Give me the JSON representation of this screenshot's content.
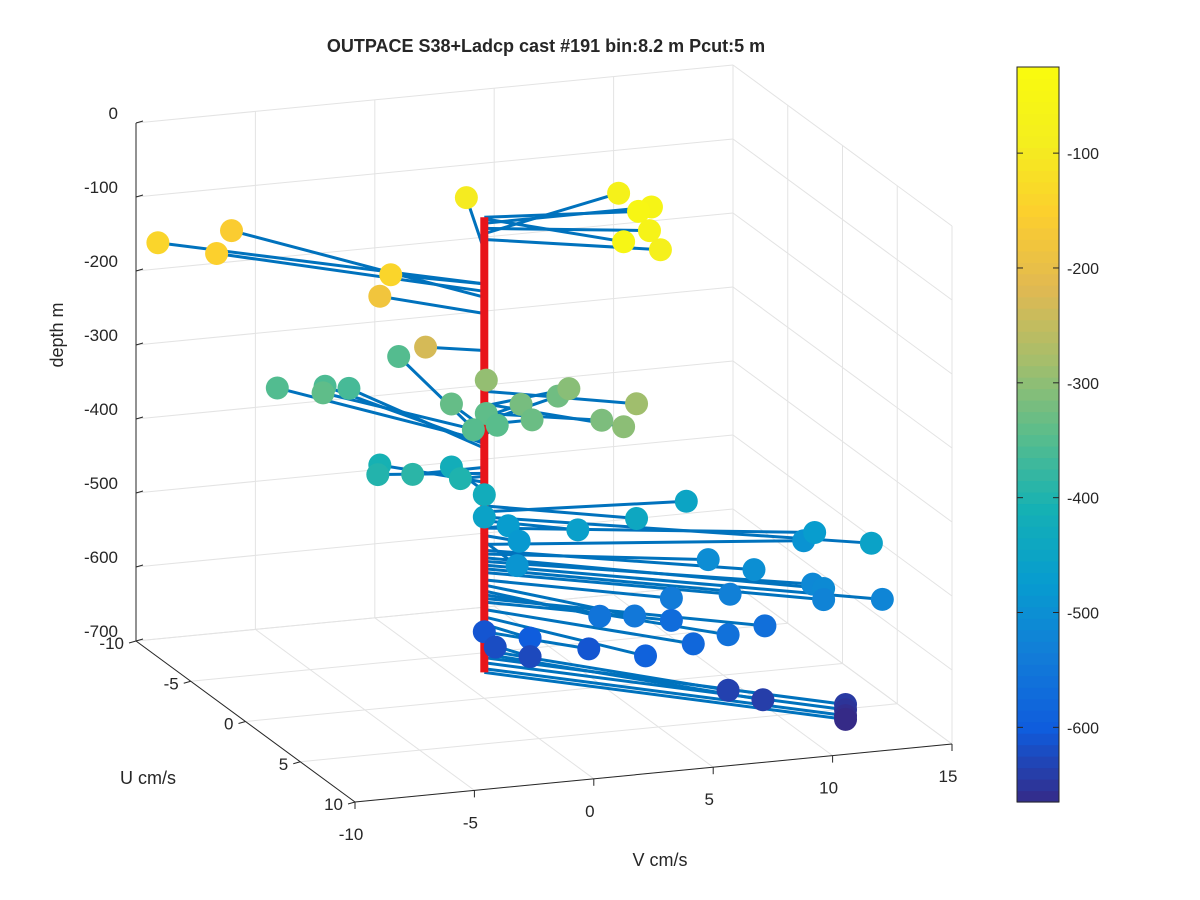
{
  "chart_data": {
    "type": "scatter3d",
    "title": "OUTPACE S38+Ladcp cast #191 bin:8.2 m  Pcut:5 m",
    "xlabel": "U cm/s",
    "ylabel": "V cm/s",
    "zlabel": "depth m",
    "xlim": [
      -10,
      10
    ],
    "ylim": [
      -10,
      15
    ],
    "zlim": [
      -700,
      0
    ],
    "x_ticks": [
      "-10",
      "-5",
      "0",
      "5",
      "10"
    ],
    "y_ticks": [
      "-10",
      "-5",
      "0",
      "5",
      "10",
      "15"
    ],
    "z_ticks": [
      "0",
      "-100",
      "-200",
      "-300",
      "-400",
      "-500",
      "-600",
      "-700"
    ],
    "grid": true,
    "colormap": "parula",
    "colorbar": {
      "range": [
        -665,
        -25
      ],
      "ticks": [
        "-100",
        "-200",
        "-300",
        "-400",
        "-500",
        "-600"
      ],
      "tick_values": [
        -100,
        -200,
        -300,
        -400,
        -500,
        -600
      ]
    },
    "stem_color": "#0072BD",
    "axis_line_color": "#E8141A",
    "points": [
      {
        "u": 1,
        "v": 6,
        "z": -50
      },
      {
        "u": 4,
        "v": 4,
        "z": -52
      },
      {
        "u": 0,
        "v": 7,
        "z": -58
      },
      {
        "u": 2,
        "v": 6,
        "z": -65
      },
      {
        "u": -3,
        "v": 7,
        "z": -72
      },
      {
        "u": 3,
        "v": 6,
        "z": -80
      },
      {
        "u": -6,
        "v": 2,
        "z": -95
      },
      {
        "u": -2,
        "v": -3,
        "z": -140
      },
      {
        "u": -8,
        "v": -10,
        "z": -140
      },
      {
        "u": -7,
        "v": -8,
        "z": -150
      },
      {
        "u": -10,
        "v": -6,
        "z": -158
      },
      {
        "u": -3,
        "v": -3,
        "z": -180
      },
      {
        "u": -1,
        "v": -2,
        "z": -230
      },
      {
        "u": -2,
        "v": 1,
        "z": -295
      },
      {
        "u": 3,
        "v": 5,
        "z": -285
      },
      {
        "u": 4,
        "v": 4,
        "z": -302
      },
      {
        "u": -1,
        "v": 4,
        "z": -305
      },
      {
        "u": 2,
        "v": 4,
        "z": -315
      },
      {
        "u": -1,
        "v": 2,
        "z": -320
      },
      {
        "u": -2,
        "v": 4,
        "z": -326
      },
      {
        "u": 0,
        "v": 2,
        "z": -330
      },
      {
        "u": -3,
        "v": 0,
        "z": -335
      },
      {
        "u": -2,
        "v": 1,
        "z": -340
      },
      {
        "u": -1,
        "v": 1,
        "z": -345
      },
      {
        "u": -1,
        "v": 0,
        "z": -348
      },
      {
        "u": -6,
        "v": -4,
        "z": -340
      },
      {
        "u": -8,
        "v": -5,
        "z": -352
      },
      {
        "u": -8,
        "v": -3,
        "z": -356
      },
      {
        "u": -8,
        "v": -2,
        "z": -362
      },
      {
        "u": -10,
        "v": 1,
        "z": -350
      },
      {
        "u": 0,
        "v": -3,
        "z": -388
      },
      {
        "u": -1,
        "v": -4,
        "z": -396
      },
      {
        "u": 0,
        "v": -1,
        "z": -400
      },
      {
        "u": -3,
        "v": -3,
        "z": -408
      },
      {
        "u": -3,
        "v": 0,
        "z": -420
      },
      {
        "u": 0,
        "v": 0,
        "z": -425
      },
      {
        "u": 3,
        "v": 5,
        "z": -440
      },
      {
        "u": 1,
        "v": 8,
        "z": -448
      },
      {
        "u": 7,
        "v": 13,
        "z": -455
      },
      {
        "u": 2,
        "v": 3,
        "z": -460
      },
      {
        "u": 0,
        "v": 0,
        "z": -455
      },
      {
        "u": 4,
        "v": 12,
        "z": -470
      },
      {
        "u": 0,
        "v": 1,
        "z": -470
      },
      {
        "u": 1,
        "v": 1,
        "z": -480
      },
      {
        "u": 3,
        "v": 0,
        "z": -488
      },
      {
        "u": 3,
        "v": 12,
        "z": -492
      },
      {
        "u": 5,
        "v": 9,
        "z": -500
      },
      {
        "u": 3,
        "v": 8,
        "z": -505
      },
      {
        "u": 7,
        "v": 11,
        "z": -510
      },
      {
        "u": 6,
        "v": 11,
        "z": -515
      },
      {
        "u": 8,
        "v": 13,
        "z": -520
      },
      {
        "u": 7,
        "v": 11,
        "z": -525
      },
      {
        "u": 5,
        "v": 8,
        "z": -530
      },
      {
        "u": 4,
        "v": 6,
        "z": -540
      },
      {
        "u": 5,
        "v": 4,
        "z": -547
      },
      {
        "u": 4,
        "v": 3,
        "z": -555
      },
      {
        "u": 7,
        "v": 7,
        "z": -560
      },
      {
        "u": 6,
        "v": 9,
        "z": -565
      },
      {
        "u": 4,
        "v": 6,
        "z": -570
      },
      {
        "u": 6,
        "v": 6,
        "z": -580
      },
      {
        "u": 6,
        "v": 4,
        "z": -590
      },
      {
        "u": 2,
        "v": 1,
        "z": -600
      },
      {
        "u": 3,
        "v": 3,
        "z": -610
      },
      {
        "u": 0,
        "v": 0,
        "z": -610
      },
      {
        "u": 1,
        "v": 0,
        "z": -620
      },
      {
        "u": 2,
        "v": 1,
        "z": -625
      },
      {
        "u": 7,
        "v": 7,
        "z": -635
      },
      {
        "u": 8,
        "v": 8,
        "z": -640
      },
      {
        "u": 9,
        "v": 11,
        "z": -645
      },
      {
        "u": 9,
        "v": 11,
        "z": -652
      },
      {
        "u": 9,
        "v": 11,
        "z": -660
      },
      {
        "u": 9,
        "v": 11,
        "z": -665
      }
    ]
  }
}
